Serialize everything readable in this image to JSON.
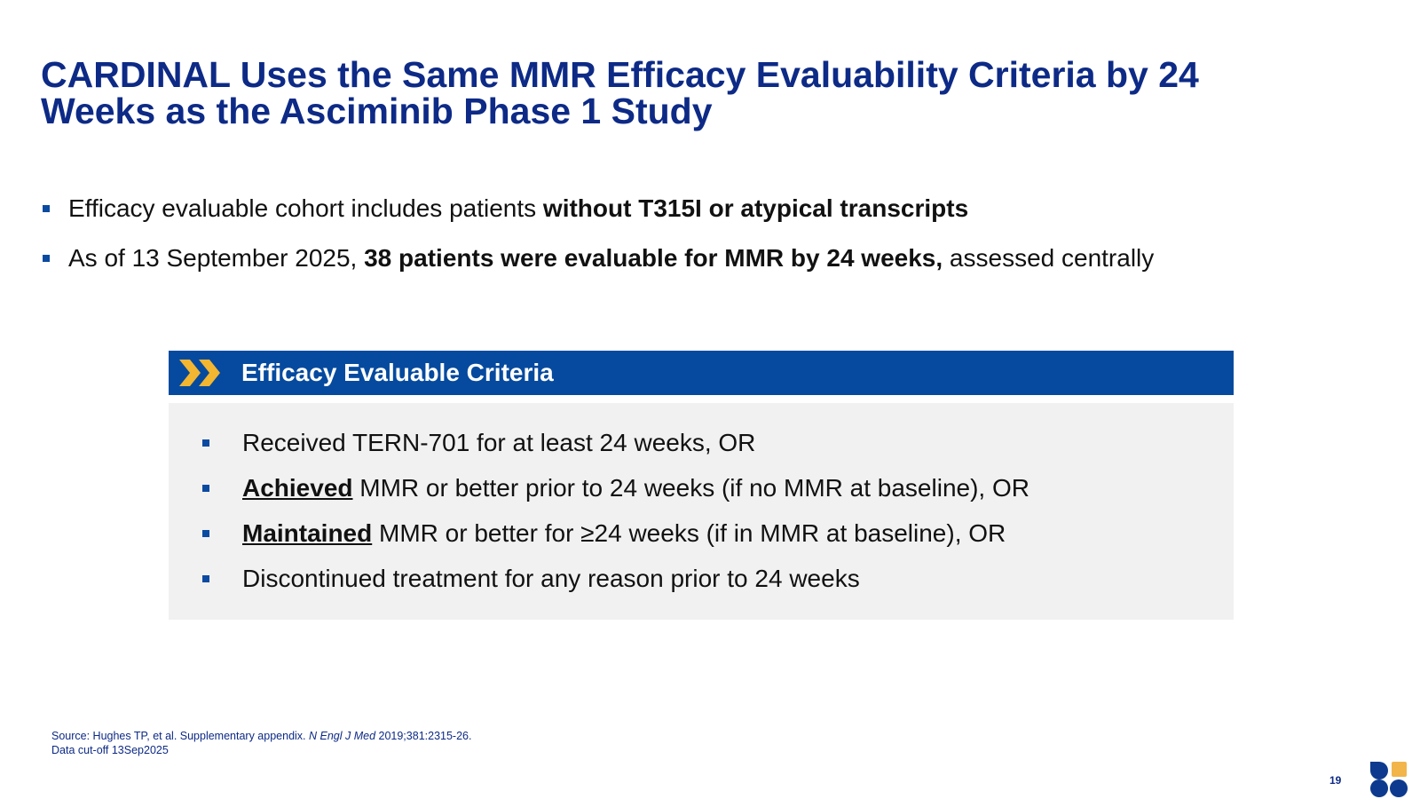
{
  "title": {
    "line1": "CARDINAL Uses the Same MMR Efficacy Evaluability Criteria by 24",
    "line2": "Weeks as the Asciminib Phase 1 Study"
  },
  "bullets": [
    {
      "pre": "Efficacy evaluable cohort includes patients ",
      "bold": "without T315I or atypical transcripts",
      "post": ""
    },
    {
      "pre": "As of 13 September 2025, ",
      "bold": "38 patients were evaluable for MMR by 24 weeks,",
      "post": " assessed centrally"
    }
  ],
  "criteria": {
    "header": "Efficacy Evaluable Criteria",
    "items": [
      {
        "emph": "",
        "text": "Received TERN-701 for at least 24 weeks, OR"
      },
      {
        "emph": "Achieved",
        "text": " MMR or better prior to 24 weeks (if no MMR at baseline), OR"
      },
      {
        "emph": "Maintained",
        "text": " MMR or better for ≥24 weeks (if in MMR at baseline), OR"
      },
      {
        "emph": "",
        "text": "Discontinued treatment for any reason prior to 24 weeks"
      }
    ]
  },
  "footnote": {
    "source_pre": "Source: Hughes TP, et al. Supplementary appendix. ",
    "source_journal": "N Engl J Med",
    "source_post": " 2019;381:2315-26.",
    "cutoff": "Data cut-off 13Sep2025"
  },
  "page_number": "19",
  "colors": {
    "title_blue": "#0d2a86",
    "header_blue": "#054a9e",
    "bullet_blue": "#0b4aa1",
    "chevron_gold": "#f2b631",
    "box_gray": "#f1f1f1",
    "logo_blue": "#0d3a8e",
    "logo_gold": "#f2b54a"
  },
  "icons": {
    "header": "double-chevron-right-icon",
    "logo": "terns-logo"
  }
}
